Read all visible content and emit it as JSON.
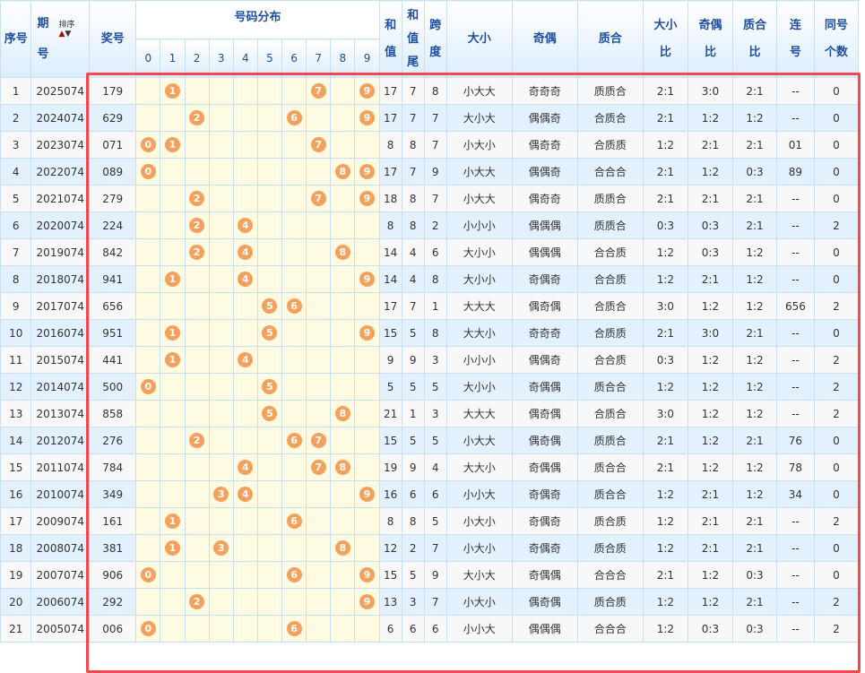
{
  "header": {
    "seq": "序号",
    "issue": "期\n号",
    "issue_top": "期",
    "issue_bottom": "号",
    "sort_label": "排序",
    "sort_up": "▲",
    "sort_down": "▼",
    "prize": "奖号",
    "dist": "号码分布",
    "digits": [
      "0",
      "1",
      "2",
      "3",
      "4",
      "5",
      "6",
      "7",
      "8",
      "9"
    ],
    "sum": "和值",
    "sum_tail": "和值尾",
    "span": "跨度",
    "bigsmall": "大小",
    "oddeven": "奇偶",
    "primecomp": "质合",
    "bs_ratio": "大小比",
    "oe_ratio": "奇偶比",
    "pc_ratio": "质合比",
    "consec": "连号",
    "same": "同号个数"
  },
  "accent": {
    "ball": "#f3a15c",
    "highlight_box": "#f5474f"
  },
  "rows": [
    [
      "1",
      "2025074",
      "179",
      "17",
      "7",
      "8",
      "小大大",
      "奇奇奇",
      "质质合",
      "2:1",
      "3:0",
      "2:1",
      "--",
      "0"
    ],
    [
      "2",
      "2024074",
      "629",
      "17",
      "7",
      "7",
      "大小大",
      "偶偶奇",
      "合质合",
      "2:1",
      "1:2",
      "1:2",
      "--",
      "0"
    ],
    [
      "3",
      "2023074",
      "071",
      "8",
      "8",
      "7",
      "小大小",
      "偶奇奇",
      "合质质",
      "1:2",
      "2:1",
      "2:1",
      "01",
      "0"
    ],
    [
      "4",
      "2022074",
      "089",
      "17",
      "7",
      "9",
      "小大大",
      "偶偶奇",
      "合合合",
      "2:1",
      "1:2",
      "0:3",
      "89",
      "0"
    ],
    [
      "5",
      "2021074",
      "279",
      "18",
      "8",
      "7",
      "小大大",
      "偶奇奇",
      "质质合",
      "2:1",
      "2:1",
      "2:1",
      "--",
      "0"
    ],
    [
      "6",
      "2020074",
      "224",
      "8",
      "8",
      "2",
      "小小小",
      "偶偶偶",
      "质质合",
      "0:3",
      "0:3",
      "2:1",
      "--",
      "2"
    ],
    [
      "7",
      "2019074",
      "842",
      "14",
      "4",
      "6",
      "大小小",
      "偶偶偶",
      "合合质",
      "1:2",
      "0:3",
      "1:2",
      "--",
      "0"
    ],
    [
      "8",
      "2018074",
      "941",
      "14",
      "4",
      "8",
      "大小小",
      "奇偶奇",
      "合合质",
      "1:2",
      "2:1",
      "1:2",
      "--",
      "0"
    ],
    [
      "9",
      "2017074",
      "656",
      "17",
      "7",
      "1",
      "大大大",
      "偶奇偶",
      "合质合",
      "3:0",
      "1:2",
      "1:2",
      "656",
      "2"
    ],
    [
      "10",
      "2016074",
      "951",
      "15",
      "5",
      "8",
      "大大小",
      "奇奇奇",
      "合质质",
      "2:1",
      "3:0",
      "2:1",
      "--",
      "0"
    ],
    [
      "11",
      "2015074",
      "441",
      "9",
      "9",
      "3",
      "小小小",
      "偶偶奇",
      "合合质",
      "0:3",
      "1:2",
      "1:2",
      "--",
      "2"
    ],
    [
      "12",
      "2014074",
      "500",
      "5",
      "5",
      "5",
      "大小小",
      "奇偶偶",
      "质合合",
      "1:2",
      "1:2",
      "1:2",
      "--",
      "2"
    ],
    [
      "13",
      "2013074",
      "858",
      "21",
      "1",
      "3",
      "大大大",
      "偶奇偶",
      "合质合",
      "3:0",
      "1:2",
      "1:2",
      "--",
      "2"
    ],
    [
      "14",
      "2012074",
      "276",
      "15",
      "5",
      "5",
      "小大大",
      "偶奇偶",
      "质质合",
      "2:1",
      "1:2",
      "2:1",
      "76",
      "0"
    ],
    [
      "15",
      "2011074",
      "784",
      "19",
      "9",
      "4",
      "大大小",
      "奇偶偶",
      "质合合",
      "2:1",
      "1:2",
      "1:2",
      "78",
      "0"
    ],
    [
      "16",
      "2010074",
      "349",
      "16",
      "6",
      "6",
      "小小大",
      "奇偶奇",
      "质合合",
      "1:2",
      "2:1",
      "1:2",
      "34",
      "0"
    ],
    [
      "17",
      "2009074",
      "161",
      "8",
      "8",
      "5",
      "小大小",
      "奇偶奇",
      "质合质",
      "1:2",
      "2:1",
      "2:1",
      "--",
      "2"
    ],
    [
      "18",
      "2008074",
      "381",
      "12",
      "2",
      "7",
      "小大小",
      "奇偶奇",
      "质合质",
      "1:2",
      "2:1",
      "2:1",
      "--",
      "0"
    ],
    [
      "19",
      "2007074",
      "906",
      "15",
      "5",
      "9",
      "大小大",
      "奇偶偶",
      "合合合",
      "2:1",
      "1:2",
      "0:3",
      "--",
      "0"
    ],
    [
      "20",
      "2006074",
      "292",
      "13",
      "3",
      "7",
      "小大小",
      "偶奇偶",
      "质合质",
      "1:2",
      "1:2",
      "2:1",
      "--",
      "2"
    ],
    [
      "21",
      "2005074",
      "006",
      "6",
      "6",
      "6",
      "小小大",
      "偶偶偶",
      "合合合",
      "1:2",
      "0:3",
      "0:3",
      "--",
      "2"
    ]
  ]
}
